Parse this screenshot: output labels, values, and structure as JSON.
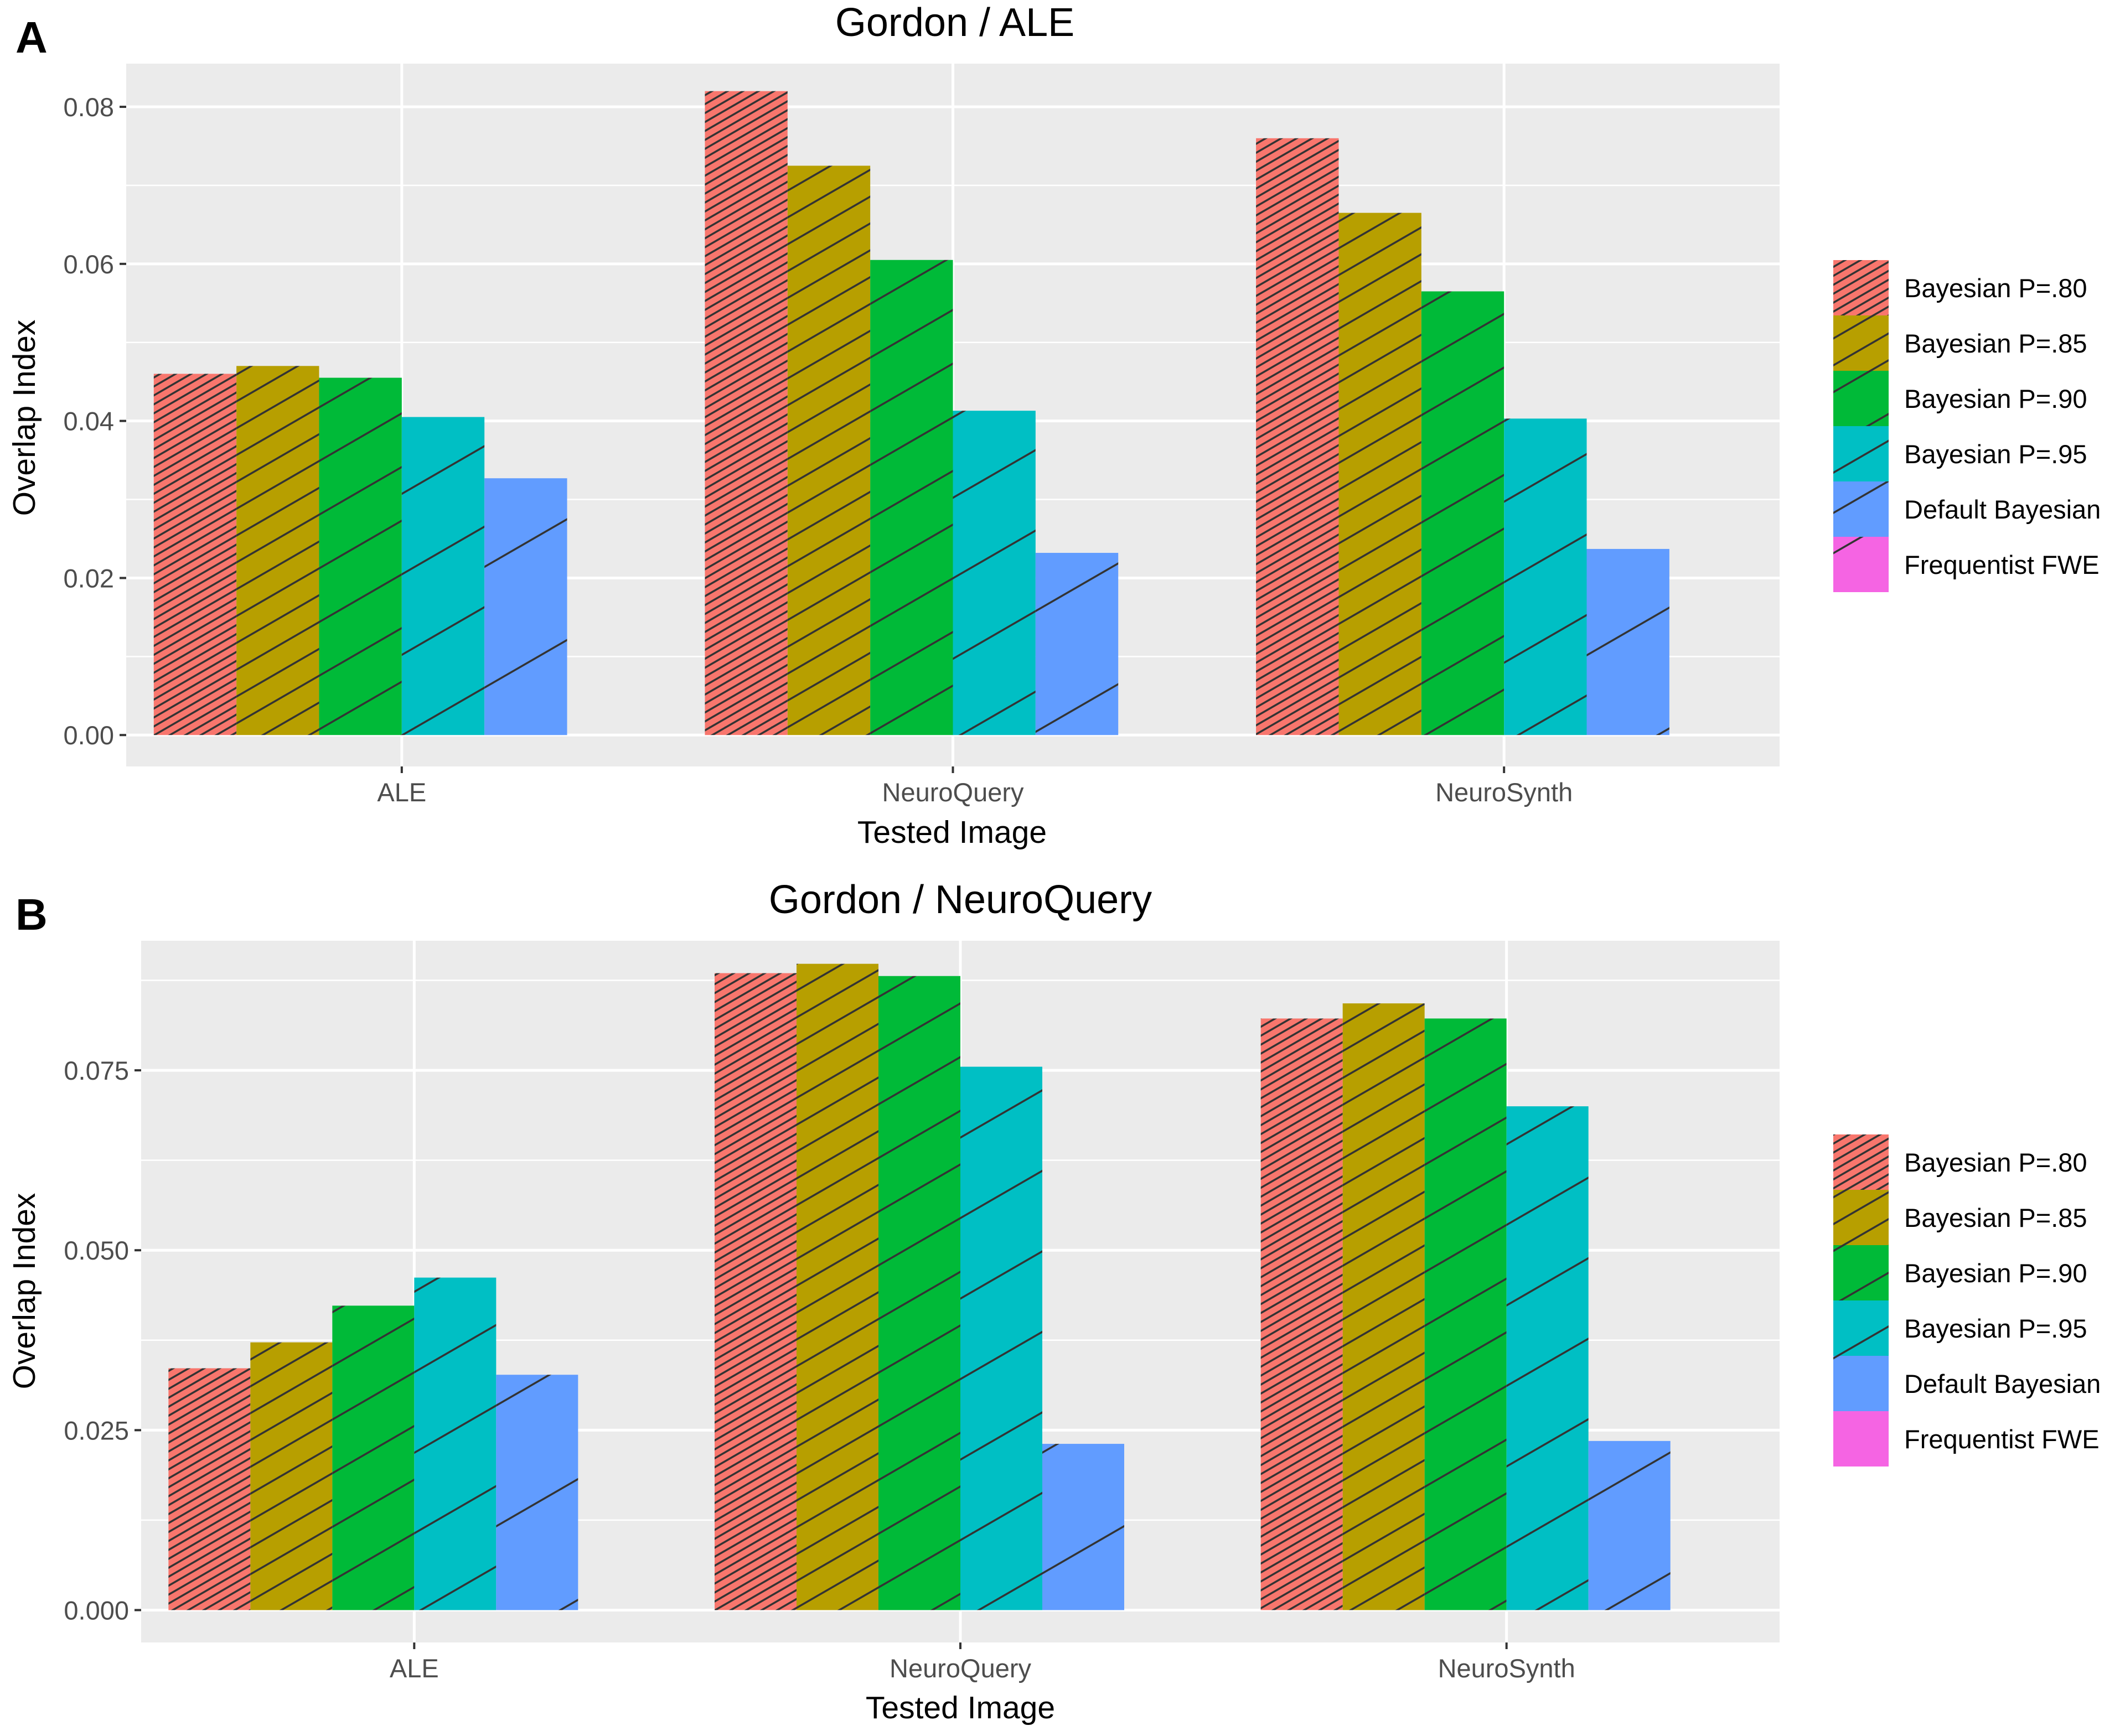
{
  "colors": {
    "panel_bg": "#EBEBEB",
    "grid": "#FFFFFF",
    "hatch": "#333333",
    "axis_text": "#4D4D4D",
    "title_text": "#000000"
  },
  "legend": {
    "entries": [
      {
        "label": "Bayesian P=.80",
        "color": "#F8766D",
        "hatch_spacing": 0.6
      },
      {
        "label": "Bayesian P=.85",
        "color": "#B79F00",
        "hatch_spacing": 2.0
      },
      {
        "label": "Bayesian P=.90",
        "color": "#00BA38",
        "hatch_spacing": 4.0
      },
      {
        "label": "Bayesian P=.95",
        "color": "#00BFC4",
        "hatch_spacing": 6.0
      },
      {
        "label": "Default Bayesian",
        "color": "#619CFF",
        "hatch_spacing": 9.0
      },
      {
        "label": "Frequentist FWE",
        "color": "#F564E3",
        "hatch_spacing": 12.0
      }
    ]
  },
  "chart_data": [
    {
      "panel_label": "A",
      "type": "bar",
      "title": "Gordon / ALE",
      "xlabel": "Tested Image",
      "ylabel": "Overlap Index",
      "categories": [
        "ALE",
        "NeuroQuery",
        "NeuroSynth"
      ],
      "ylim": [
        -0.004,
        0.0855
      ],
      "yticks": [
        0.0,
        0.02,
        0.04,
        0.06,
        0.08
      ],
      "ytick_labels": [
        "0.00",
        "0.02",
        "0.04",
        "0.06",
        "0.08"
      ],
      "grid": true,
      "legend_position": "right",
      "series": [
        {
          "name": "Bayesian P=.80",
          "values": [
            0.046,
            0.082,
            0.076
          ]
        },
        {
          "name": "Bayesian P=.85",
          "values": [
            0.047,
            0.0725,
            0.0665
          ]
        },
        {
          "name": "Bayesian P=.90",
          "values": [
            0.0455,
            0.0605,
            0.0565
          ]
        },
        {
          "name": "Bayesian P=.95",
          "values": [
            0.0405,
            0.0413,
            0.0403
          ]
        },
        {
          "name": "Default Bayesian",
          "values": [
            0.0327,
            0.0232,
            0.0237
          ]
        },
        {
          "name": "Frequentist FWE",
          "values": [
            0,
            0,
            0
          ]
        }
      ]
    },
    {
      "panel_label": "B",
      "type": "bar",
      "title": "Gordon / NeuroQuery",
      "xlabel": "Tested Image",
      "ylabel": "Overlap Index",
      "categories": [
        "ALE",
        "NeuroQuery",
        "NeuroSynth"
      ],
      "ylim": [
        -0.0045,
        0.093
      ],
      "yticks": [
        0.0,
        0.025,
        0.05,
        0.075
      ],
      "ytick_labels": [
        "0.000",
        "0.025",
        "0.050",
        "0.075"
      ],
      "grid": true,
      "legend_position": "right",
      "series": [
        {
          "name": "Bayesian P=.80",
          "values": [
            0.0336,
            0.0885,
            0.0822
          ]
        },
        {
          "name": "Bayesian P=.85",
          "values": [
            0.0372,
            0.0898,
            0.0843
          ]
        },
        {
          "name": "Bayesian P=.90",
          "values": [
            0.0423,
            0.0881,
            0.0822
          ]
        },
        {
          "name": "Bayesian P=.95",
          "values": [
            0.0462,
            0.0755,
            0.07
          ]
        },
        {
          "name": "Default Bayesian",
          "values": [
            0.0327,
            0.0231,
            0.0235
          ]
        },
        {
          "name": "Frequentist FWE",
          "values": [
            0,
            0,
            0
          ]
        }
      ]
    }
  ]
}
